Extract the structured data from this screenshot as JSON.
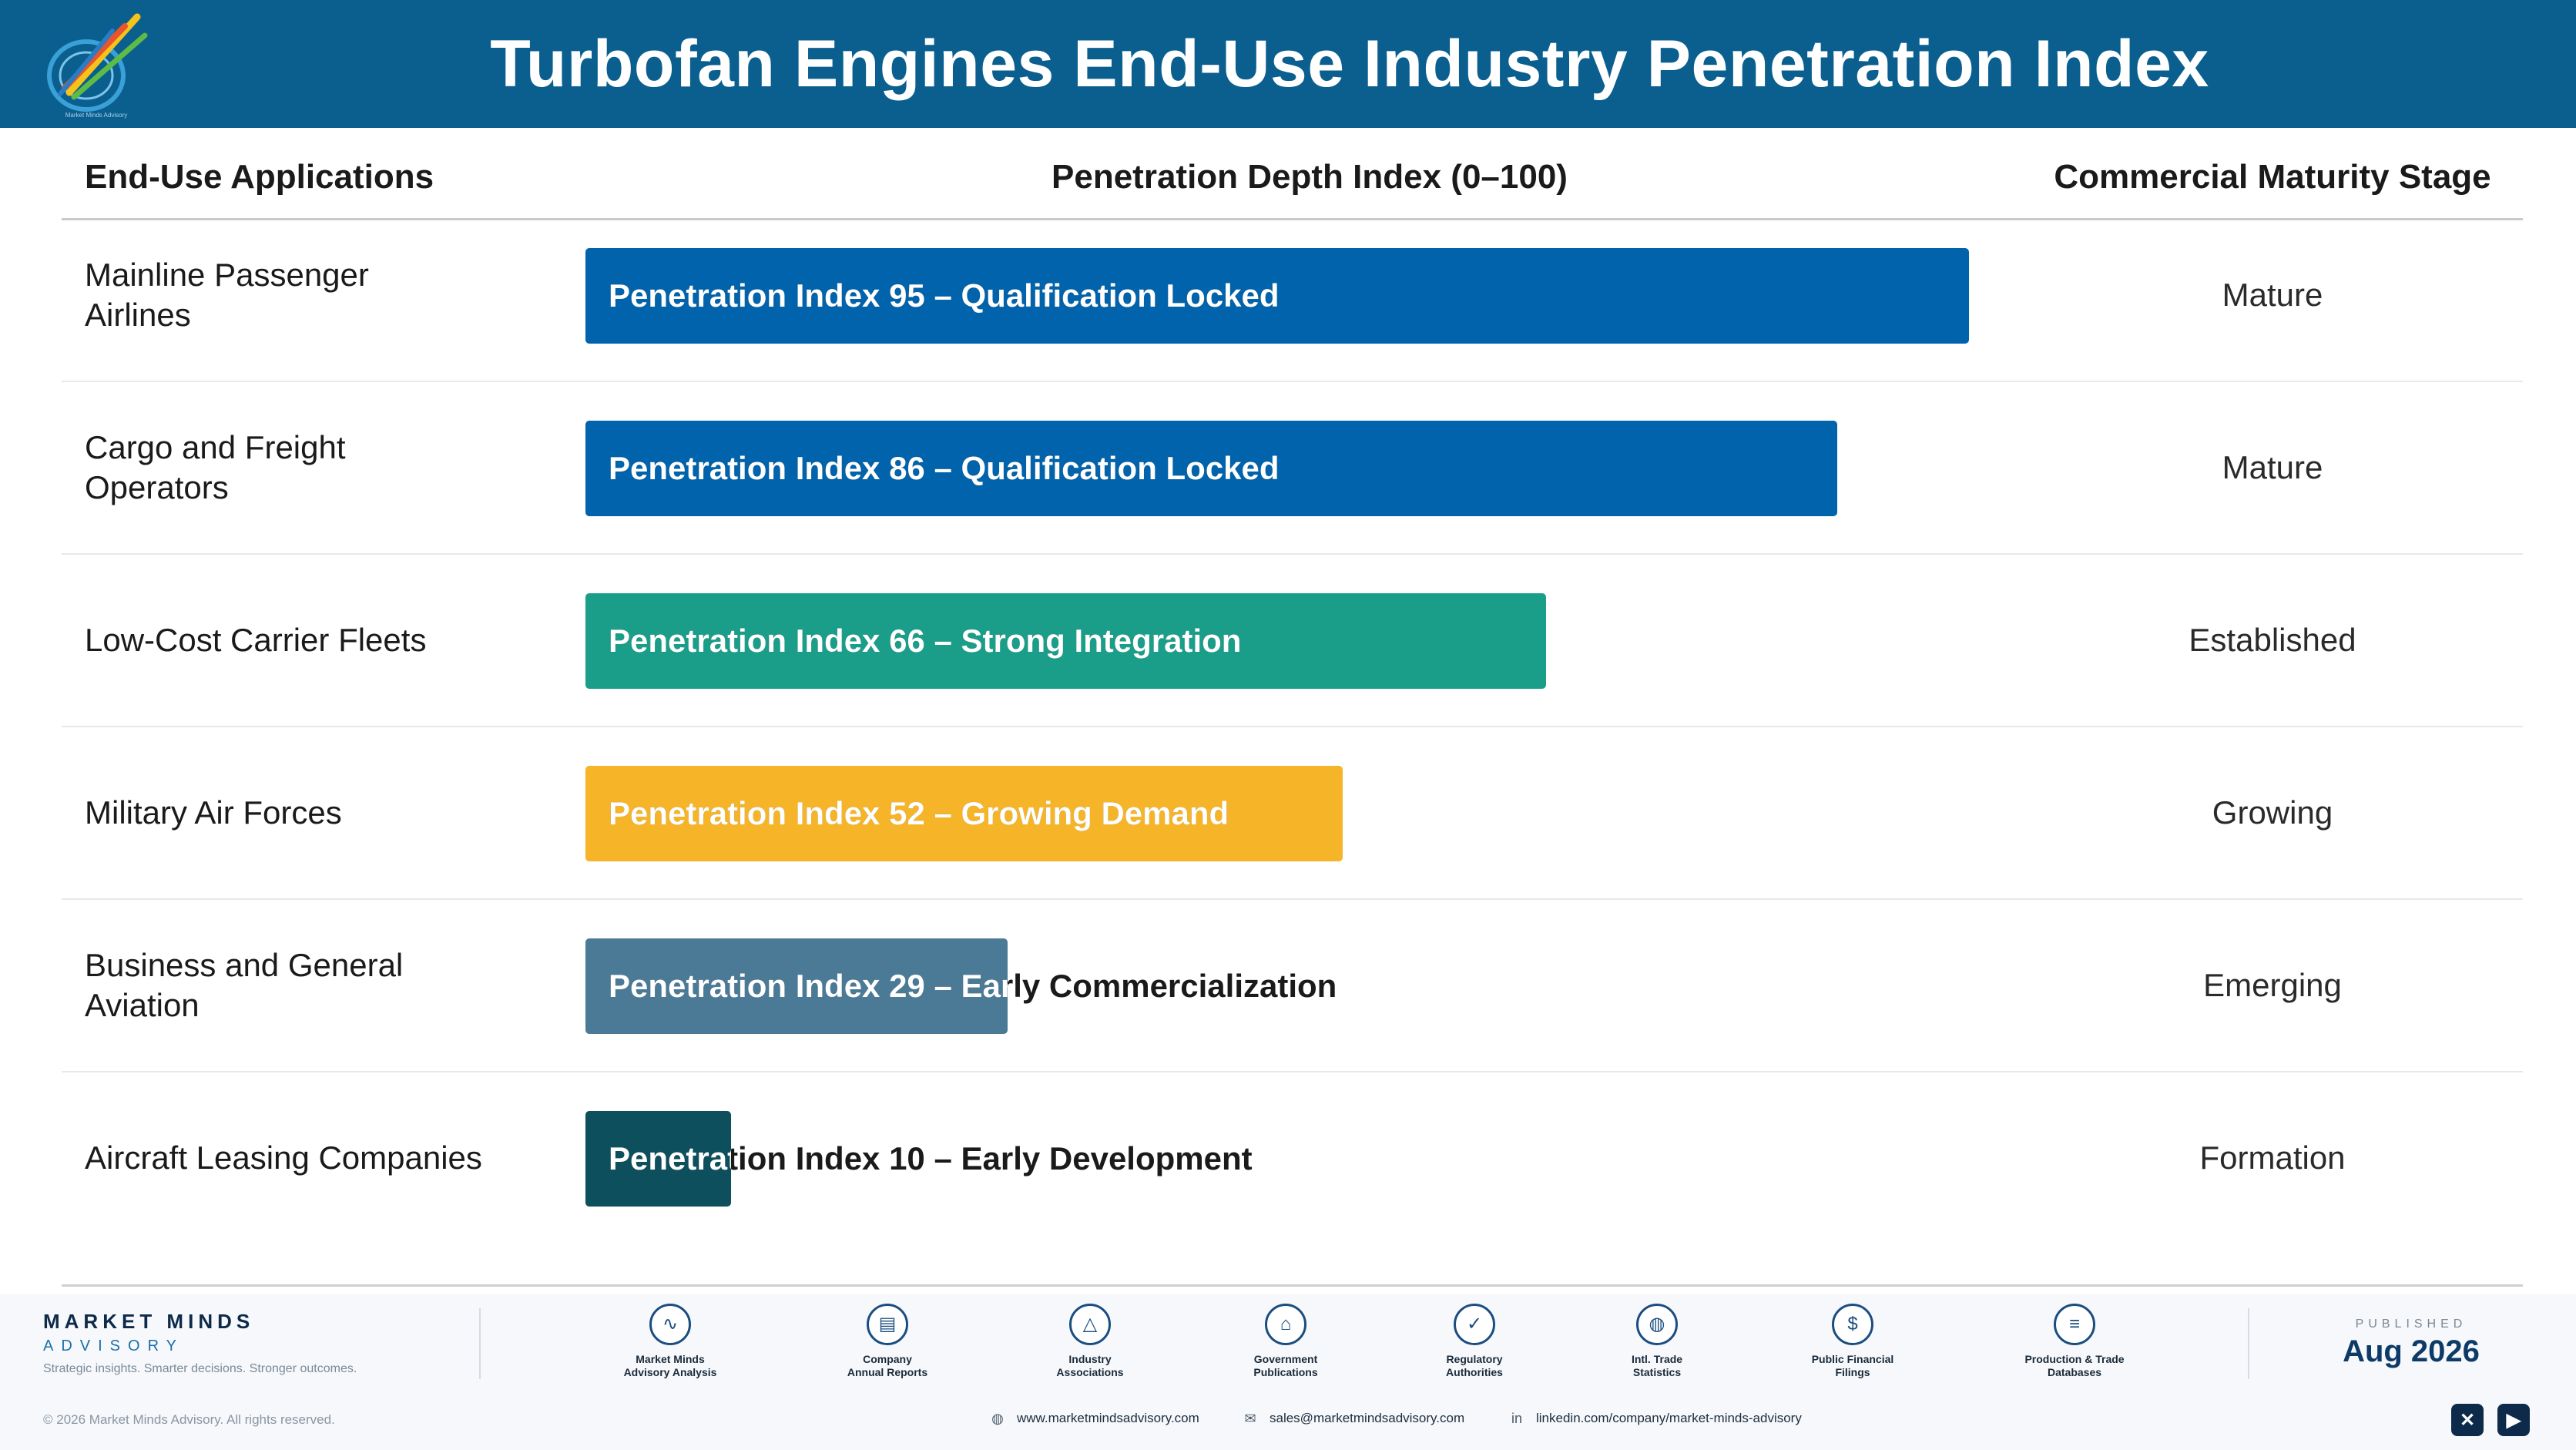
{
  "header": {
    "title": "Turbofan Engines End-Use Industry Penetration Index",
    "logo_tagline": "Market Minds Advisory"
  },
  "columns": {
    "applications": "End-Use Applications",
    "depth": "Penetration Depth Index (0–100)",
    "stage": "Commercial Maturity Stage"
  },
  "chart_data": {
    "type": "bar",
    "orientation": "horizontal",
    "title": "Turbofan Engines End-Use Industry Penetration Index",
    "xlabel": "Penetration Depth Index (0–100)",
    "xlim": [
      0,
      100
    ],
    "grid": false,
    "categories": [
      "Mainline Passenger Airlines",
      "Cargo and Freight Operators",
      "Low-Cost Carrier Fleets",
      "Military Air Forces",
      "Business and General Aviation",
      "Aircraft Leasing Companies"
    ],
    "values": [
      95,
      86,
      66,
      52,
      29,
      10
    ],
    "rows": [
      {
        "application": "Mainline Passenger\nAirlines",
        "value": 95,
        "bar_label": "Penetration Index 95 – Qualification Locked",
        "stage": "Mature",
        "color": "#0063ab"
      },
      {
        "application": "Cargo and Freight\nOperators",
        "value": 86,
        "bar_label": "Penetration Index 86 – Qualification Locked",
        "stage": "Mature",
        "color": "#0063ab"
      },
      {
        "application": "Low-Cost Carrier Fleets",
        "value": 66,
        "bar_label": "Penetration Index 66 – Strong Integration",
        "stage": "Established",
        "color": "#1a9e8a"
      },
      {
        "application": "Military Air Forces",
        "value": 52,
        "bar_label": "Penetration Index 52 – Growing Demand",
        "stage": "Growing",
        "color": "#f6b428"
      },
      {
        "application": "Business and General\nAviation",
        "value": 29,
        "bar_label": "Penetration Index 29 – Early Commercialization",
        "stage": "Emerging",
        "color": "#4a7a96"
      },
      {
        "application": "Aircraft Leasing Companies",
        "value": 10,
        "bar_label": "Penetration Index 10 – Early Development",
        "stage": "Formation",
        "color": "#0d4f5c"
      }
    ]
  },
  "footer": {
    "brand_name": "MARKET MINDS",
    "brand_sub": "ADVISORY",
    "brand_tagline": "Strategic insights. Smarter decisions. Stronger outcomes.",
    "sources": [
      {
        "icon": "trend-chart-icon",
        "glyph": "∿",
        "label": "Market Minds\nAdvisory Analysis"
      },
      {
        "icon": "document-icon",
        "glyph": "▤",
        "label": "Company\nAnnual Reports"
      },
      {
        "icon": "network-icon",
        "glyph": "△",
        "label": "Industry\nAssociations"
      },
      {
        "icon": "government-building-icon",
        "glyph": "⌂",
        "label": "Government\nPublications"
      },
      {
        "icon": "shield-check-icon",
        "glyph": "✓",
        "label": "Regulatory\nAuthorities"
      },
      {
        "icon": "globe-icon",
        "glyph": "◍",
        "label": "Intl. Trade\nStatistics"
      },
      {
        "icon": "dollar-coin-icon",
        "glyph": "$",
        "label": "Public Financial\nFilings"
      },
      {
        "icon": "database-icon",
        "glyph": "≡",
        "label": "Production & Trade\nDatabases"
      }
    ],
    "published_label": "PUBLISHED",
    "published_date": "Aug 2026",
    "copyright": "© 2026 Market Minds Advisory. All rights reserved.",
    "website": "www.marketmindsadvisory.com",
    "email": "sales@marketmindsadvisory.com",
    "linkedin": "linkedin.com/company/market-minds-advisory",
    "social": [
      {
        "icon": "x-icon",
        "glyph": "✕"
      },
      {
        "icon": "youtube-icon",
        "glyph": "▶"
      }
    ],
    "contact_icons": {
      "web": "globe-icon",
      "email": "mail-icon",
      "linkedin": "linkedin-icon"
    }
  }
}
